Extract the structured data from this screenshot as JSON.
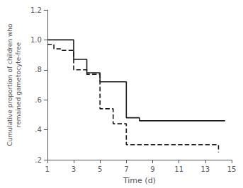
{
  "chart_data": {
    "type": "line",
    "xlabel": "Time (d)",
    "ylabel": "Cumulative proportion of children who\nremained gametocyte-free",
    "xlim": [
      1,
      15
    ],
    "ylim": [
      0.2,
      1.2
    ],
    "xticks": [
      1,
      3,
      5,
      7,
      9,
      11,
      13,
      15
    ],
    "yticks": [
      {
        "value": 0.2,
        "label": ".2"
      },
      {
        "value": 0.4,
        "label": ".4"
      },
      {
        "value": 0.6,
        "label": ".6"
      },
      {
        "value": 0.8,
        "label": ".8"
      },
      {
        "value": 1.0,
        "label": "1.0"
      },
      1.2
    ],
    "grid": false,
    "series": [
      {
        "color": "#1a1a1a",
        "line_style": "solid",
        "x": [
          1,
          3,
          3,
          4,
          4,
          5,
          5,
          7,
          7,
          8,
          8,
          14.5
        ],
        "values": [
          1.0,
          1.0,
          0.87,
          0.87,
          0.78,
          0.78,
          0.72,
          0.72,
          0.48,
          0.48,
          0.46,
          0.46
        ]
      },
      {
        "color": "#1a1a1a",
        "line_style": "dashed",
        "x": [
          1,
          1.5,
          1.5,
          2,
          2,
          3,
          3,
          4,
          4,
          5,
          5,
          6,
          6,
          7,
          7,
          14,
          14
        ],
        "values": [
          0.97,
          0.97,
          0.94,
          0.94,
          0.93,
          0.93,
          0.8,
          0.8,
          0.77,
          0.77,
          0.54,
          0.54,
          0.44,
          0.44,
          0.3,
          0.3,
          0.25
        ]
      }
    ]
  }
}
